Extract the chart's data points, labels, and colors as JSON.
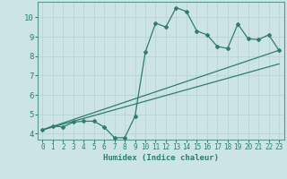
{
  "xlabel": "Humidex (Indice chaleur)",
  "ylabel": "",
  "bg_color": "#cde4e4",
  "grid_color": "#b8d4d4",
  "line_color": "#2e7d6e",
  "spine_color": "#5a9a8a",
  "xlim": [
    -0.5,
    23.5
  ],
  "ylim": [
    3.7,
    10.8
  ],
  "xticks": [
    0,
    1,
    2,
    3,
    4,
    5,
    6,
    7,
    8,
    9,
    10,
    11,
    12,
    13,
    14,
    15,
    16,
    17,
    18,
    19,
    20,
    21,
    22,
    23
  ],
  "yticks": [
    4,
    5,
    6,
    7,
    8,
    9,
    10
  ],
  "main_line": {
    "x": [
      0,
      1,
      2,
      3,
      4,
      5,
      6,
      7,
      8,
      9,
      10,
      11,
      12,
      13,
      14,
      15,
      16,
      17,
      18,
      19,
      20,
      21,
      22,
      23
    ],
    "y": [
      4.2,
      4.4,
      4.35,
      4.6,
      4.65,
      4.65,
      4.35,
      3.8,
      3.8,
      4.9,
      8.2,
      9.7,
      9.5,
      10.5,
      10.3,
      9.3,
      9.1,
      8.5,
      8.4,
      9.65,
      8.9,
      8.85,
      9.1,
      8.3
    ]
  },
  "line2": {
    "x": [
      0,
      23
    ],
    "y": [
      4.2,
      8.3
    ]
  },
  "line3": {
    "x": [
      0,
      23
    ],
    "y": [
      4.2,
      7.6
    ]
  }
}
